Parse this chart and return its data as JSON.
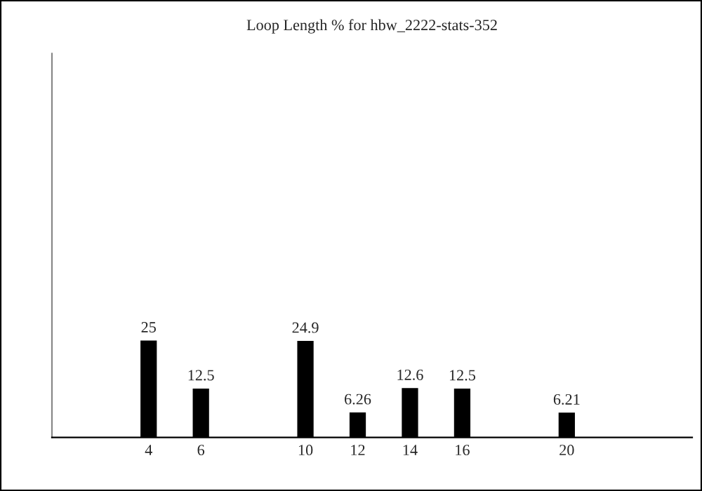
{
  "chart_data": {
    "type": "bar",
    "title": "Loop Length % for hbw_2222-stats-352",
    "x": [
      4,
      6,
      10,
      12,
      14,
      16,
      20
    ],
    "values": [
      25,
      12.5,
      24.9,
      6.26,
      12.6,
      12.5,
      6.21
    ],
    "color": "#000000",
    "data_labels": true,
    "xlim": [
      0.3,
      24.8
    ],
    "xticks": [
      4,
      6,
      10,
      12,
      14,
      16,
      20
    ],
    "ylim": [
      0,
      100
    ],
    "tick_labels": "x",
    "grid": false,
    "legend": false
  }
}
